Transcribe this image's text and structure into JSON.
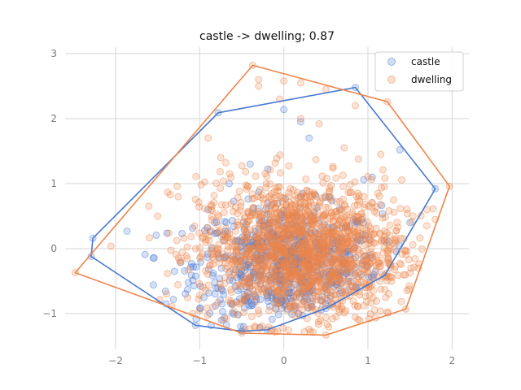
{
  "chart_data": {
    "type": "scatter",
    "title": "castle -> dwelling; 0.87",
    "xlabel": "",
    "ylabel": "",
    "xlim": [
      -2.6,
      2.2
    ],
    "ylim": [
      -1.55,
      3.1
    ],
    "xticks": [
      -2,
      -1,
      0,
      1,
      2
    ],
    "yticks": [
      -1,
      0,
      1,
      2,
      3
    ],
    "xtick_labels": [
      "−2",
      "−1",
      "0",
      "1",
      "2"
    ],
    "ytick_labels": [
      "−1",
      "0",
      "1",
      "2",
      "3"
    ],
    "grid": true,
    "legend": {
      "placement": "top-right"
    },
    "series": [
      {
        "name": "castle",
        "color": "#4878d0",
        "cloud": {
          "cx": 0.05,
          "cy": -0.25,
          "sx": 0.55,
          "sy": 0.45,
          "n": 700
        },
        "points": [
          [
            -2.27,
            0.16
          ],
          [
            -2.29,
            -0.12
          ],
          [
            -1.65,
            -0.09
          ],
          [
            -1.55,
            -0.56
          ],
          [
            -1.4,
            -0.85
          ],
          [
            -1.05,
            -1.18
          ],
          [
            -0.5,
            -1.27
          ],
          [
            -0.2,
            -1.25
          ],
          [
            0.5,
            -0.92
          ],
          [
            1.2,
            -0.41
          ],
          [
            1.8,
            0.92
          ],
          [
            0.85,
            2.48
          ],
          [
            0.0,
            2.14
          ],
          [
            -0.78,
            2.09
          ],
          [
            1.38,
            1.52
          ],
          [
            0.95,
            1.06
          ],
          [
            1.05,
            1.1
          ],
          [
            -0.65,
            1.0
          ],
          [
            -0.9,
            0.6
          ],
          [
            -1.3,
            -0.35
          ],
          [
            0.3,
            1.7
          ],
          [
            0.2,
            1.95
          ],
          [
            -0.4,
            1.3
          ],
          [
            1.5,
            0.4
          ],
          [
            -0.95,
            -0.75
          ]
        ],
        "hull": [
          [
            -2.29,
            -0.12
          ],
          [
            -2.27,
            0.16
          ],
          [
            -0.78,
            2.09
          ],
          [
            0.85,
            2.48
          ],
          [
            1.8,
            0.92
          ],
          [
            1.2,
            -0.41
          ],
          [
            0.5,
            -0.92
          ],
          [
            -0.2,
            -1.25
          ],
          [
            -0.5,
            -1.27
          ],
          [
            -1.05,
            -1.18
          ]
        ]
      },
      {
        "name": "dwelling",
        "color": "#ee854a",
        "cloud": {
          "cx": 0.2,
          "cy": -0.05,
          "sx": 0.6,
          "sy": 0.55,
          "n": 1600
        },
        "points": [
          [
            -2.48,
            -0.37
          ],
          [
            -0.37,
            2.82
          ],
          [
            1.23,
            2.26
          ],
          [
            1.97,
            0.96
          ],
          [
            1.45,
            -0.93
          ],
          [
            0.5,
            -1.33
          ],
          [
            -0.5,
            -1.3
          ],
          [
            -0.3,
            2.6
          ],
          [
            -0.3,
            2.5
          ],
          [
            0.0,
            2.58
          ],
          [
            0.2,
            2.55
          ],
          [
            0.5,
            2.45
          ],
          [
            0.85,
            2.2
          ],
          [
            1.7,
            0.6
          ],
          [
            1.8,
            0.45
          ],
          [
            -1.38,
            0.87
          ],
          [
            -1.5,
            0.5
          ],
          [
            -0.9,
            1.7
          ],
          [
            -0.75,
            1.4
          ],
          [
            0.2,
            2.0
          ],
          [
            -0.05,
            2.3
          ],
          [
            1.6,
            -0.3
          ]
        ],
        "hull": [
          [
            -2.48,
            -0.37
          ],
          [
            -0.37,
            2.82
          ],
          [
            1.23,
            2.26
          ],
          [
            1.97,
            0.96
          ],
          [
            1.45,
            -0.93
          ],
          [
            0.5,
            -1.33
          ],
          [
            -0.5,
            -1.3
          ]
        ]
      }
    ]
  }
}
